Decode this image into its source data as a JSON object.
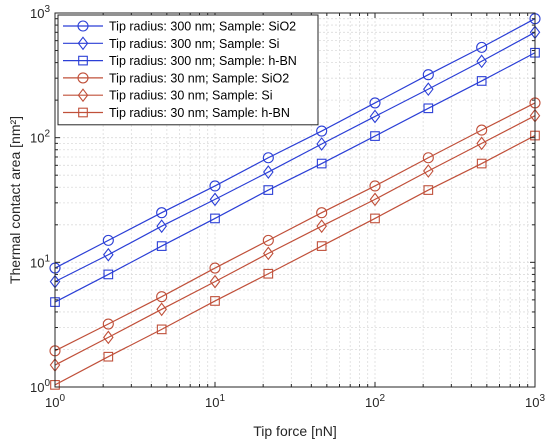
{
  "chart_data": {
    "type": "line",
    "xlabel": "Tip force [nN]",
    "ylabel": "Thermal contact area [nm²]",
    "xscale": "log",
    "yscale": "log",
    "xlim": [
      1,
      1000
    ],
    "ylim": [
      1,
      1000
    ],
    "grid": true,
    "legend_position": "top-left",
    "x": [
      1,
      2.154,
      4.642,
      10,
      21.54,
      46.42,
      100,
      215.4,
      464.2,
      1000
    ],
    "x_tick_labels": [
      {
        "base": "10",
        "exp": "0"
      },
      {
        "base": "10",
        "exp": "1"
      },
      {
        "base": "10",
        "exp": "2"
      },
      {
        "base": "10",
        "exp": "3"
      }
    ],
    "y_tick_labels": [
      {
        "base": "10",
        "exp": "0"
      },
      {
        "base": "10",
        "exp": "1"
      },
      {
        "base": "10",
        "exp": "2"
      },
      {
        "base": "10",
        "exp": "3"
      }
    ],
    "series": [
      {
        "name": "Tip radius: 300 nm; Sample: SiO2",
        "color": "#2b3fd6",
        "marker": "circle",
        "values": [
          9.0,
          15.0,
          25.0,
          41.0,
          69.0,
          113.0,
          190.0,
          320.0,
          530.0,
          900.0
        ]
      },
      {
        "name": "Tip radius: 300 nm; Sample: Si",
        "color": "#2b3fd6",
        "marker": "diamond",
        "values": [
          7.0,
          11.5,
          19.5,
          32.0,
          53.0,
          89.0,
          148.0,
          245.0,
          410.0,
          700.0
        ]
      },
      {
        "name": "Tip radius: 300 nm; Sample: h-BN",
        "color": "#2b3fd6",
        "marker": "square",
        "values": [
          4.8,
          8.0,
          13.5,
          22.5,
          38.0,
          62.0,
          103.0,
          172.0,
          285.0,
          480.0
        ]
      },
      {
        "name": "Tip radius: 30 nm; Sample: SiO2",
        "color": "#c0503a",
        "marker": "circle",
        "values": [
          1.95,
          3.2,
          5.3,
          9.0,
          15.0,
          25.0,
          41.0,
          69.0,
          115.0,
          190.0
        ]
      },
      {
        "name": "Tip radius: 30 nm; Sample: Si",
        "color": "#c0503a",
        "marker": "diamond",
        "values": [
          1.5,
          2.5,
          4.2,
          7.0,
          11.8,
          19.5,
          32.0,
          54.0,
          90.0,
          150.0
        ]
      },
      {
        "name": "Tip radius: 30 nm; Sample: h-BN",
        "color": "#c0503a",
        "marker": "square",
        "values": [
          1.04,
          1.75,
          2.9,
          4.9,
          8.1,
          13.5,
          22.5,
          38.0,
          62.0,
          104.0
        ]
      }
    ]
  }
}
